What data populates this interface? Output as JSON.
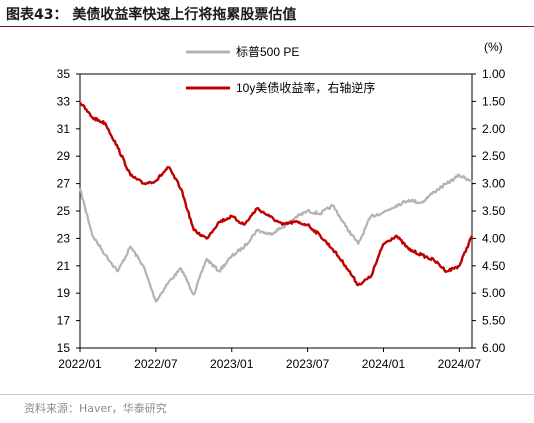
{
  "figure": {
    "title": "图表43：  美债收益率快速上行将拖累股票估值",
    "source": "资料来源：Haver，华泰研究"
  },
  "chart_data": {
    "type": "line",
    "x_tick_labels": [
      "2022/01",
      "2022/07",
      "2023/01",
      "2023/07",
      "2024/01",
      "2024/07"
    ],
    "x_range": [
      "2022/01",
      "2024/08"
    ],
    "left_axis": {
      "ylim": [
        15,
        35
      ],
      "ticks": [
        15,
        17,
        19,
        21,
        23,
        25,
        27,
        29,
        31,
        33,
        35
      ]
    },
    "right_axis": {
      "unit": "(%)",
      "ylim": [
        6.0,
        1.0
      ],
      "inverted": true,
      "ticks": [
        "1.00",
        "1.50",
        "2.00",
        "2.50",
        "3.00",
        "3.50",
        "4.00",
        "4.50",
        "5.00",
        "5.50",
        "6.00"
      ]
    },
    "grid": false,
    "legend_position": "top-center",
    "series": [
      {
        "name": "标普500 PE",
        "axis": "left",
        "color": "#b3b3b3",
        "points": [
          [
            "2022/01",
            26.6
          ],
          [
            "2022/02",
            23.2
          ],
          [
            "2022/03",
            21.8
          ],
          [
            "2022/04",
            20.6
          ],
          [
            "2022/05",
            22.4
          ],
          [
            "2022/06",
            21.0
          ],
          [
            "2022/07",
            18.4
          ],
          [
            "2022/08",
            19.8
          ],
          [
            "2022/09",
            20.8
          ],
          [
            "2022/10",
            18.9
          ],
          [
            "2022/11",
            21.5
          ],
          [
            "2022/12",
            20.6
          ],
          [
            "2023/01",
            21.7
          ],
          [
            "2023/02",
            22.4
          ],
          [
            "2023/03",
            23.6
          ],
          [
            "2023/04",
            23.3
          ],
          [
            "2023/05",
            23.8
          ],
          [
            "2023/06",
            24.5
          ],
          [
            "2023/07",
            25.0
          ],
          [
            "2023/08",
            24.8
          ],
          [
            "2023/09",
            25.4
          ],
          [
            "2023/10",
            23.9
          ],
          [
            "2023/11",
            22.6
          ],
          [
            "2023/12",
            24.6
          ],
          [
            "2024/01",
            24.9
          ],
          [
            "2024/02",
            25.4
          ],
          [
            "2024/03",
            25.8
          ],
          [
            "2024/04",
            25.6
          ],
          [
            "2024/05",
            26.4
          ],
          [
            "2024/06",
            27.0
          ],
          [
            "2024/07",
            27.6
          ],
          [
            "2024/08",
            27.2
          ]
        ]
      },
      {
        "name": "10y美债收益率，右轴逆序",
        "axis": "right",
        "color": "#c00000",
        "points": [
          [
            "2022/01",
            1.52
          ],
          [
            "2022/02",
            1.8
          ],
          [
            "2022/03",
            1.9
          ],
          [
            "2022/04",
            2.35
          ],
          [
            "2022/05",
            2.85
          ],
          [
            "2022/06",
            3.0
          ],
          [
            "2022/07",
            2.95
          ],
          [
            "2022/08",
            2.7
          ],
          [
            "2022/09",
            3.1
          ],
          [
            "2022/10",
            3.85
          ],
          [
            "2022/11",
            4.0
          ],
          [
            "2022/12",
            3.7
          ],
          [
            "2023/01",
            3.6
          ],
          [
            "2023/02",
            3.75
          ],
          [
            "2023/03",
            3.45
          ],
          [
            "2023/04",
            3.6
          ],
          [
            "2023/05",
            3.75
          ],
          [
            "2023/06",
            3.7
          ],
          [
            "2023/07",
            3.75
          ],
          [
            "2023/08",
            3.95
          ],
          [
            "2023/09",
            4.2
          ],
          [
            "2023/10",
            4.5
          ],
          [
            "2023/11",
            4.85
          ],
          [
            "2023/12",
            4.7
          ],
          [
            "2024/01",
            4.1
          ],
          [
            "2024/02",
            3.95
          ],
          [
            "2024/03",
            4.2
          ],
          [
            "2024/04",
            4.3
          ],
          [
            "2024/05",
            4.4
          ],
          [
            "2024/06",
            4.6
          ],
          [
            "2024/07",
            4.5
          ],
          [
            "2024/08",
            3.95
          ]
        ]
      }
    ]
  }
}
